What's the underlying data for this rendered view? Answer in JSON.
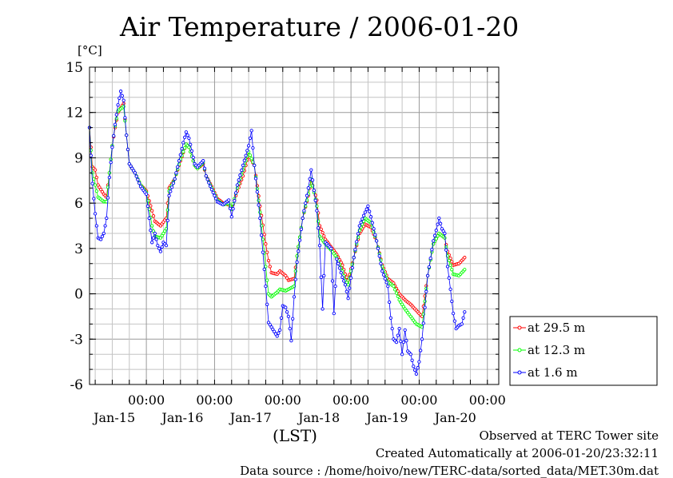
{
  "chart_data": {
    "type": "scatter",
    "title": "Air Temperature / 2006-01-20",
    "ylabel": "[°C]",
    "xlabel": "(LST)",
    "ylim": [
      -6,
      15
    ],
    "yticks": [
      -6,
      -3,
      0,
      3,
      6,
      9,
      12,
      15
    ],
    "x_unit": "hours",
    "xlim": [
      0,
      144
    ],
    "x_start": "2006-01-14 12:00",
    "day_ticks": [
      {
        "x": 20,
        "time": "00:00",
        "day": "Jan-15"
      },
      {
        "x": 44,
        "time": "00:00",
        "day": "Jan-16"
      },
      {
        "x": 68,
        "time": "00:00",
        "day": "Jan-17"
      },
      {
        "x": 92,
        "time": "00:00",
        "day": "Jan-18"
      },
      {
        "x": 116,
        "time": "00:00",
        "day": "Jan-19"
      },
      {
        "x": 140,
        "time": "00:00",
        "day": "Jan-20"
      }
    ],
    "grid": true,
    "legend_position": "right",
    "series": [
      {
        "name": "at 29.5 m",
        "color": "#ff0000",
        "points": [
          [
            0,
            11
          ],
          [
            1,
            8.4
          ],
          [
            2,
            8.2
          ],
          [
            3,
            7.2
          ],
          [
            5,
            6.6
          ],
          [
            6,
            6.4
          ],
          [
            7,
            8
          ],
          [
            8,
            9.8
          ],
          [
            9,
            11
          ],
          [
            10,
            12
          ],
          [
            12,
            12.6
          ],
          [
            13,
            10.5
          ],
          [
            14,
            8.6
          ],
          [
            16,
            8
          ],
          [
            18,
            7.2
          ],
          [
            20,
            6.8
          ],
          [
            22,
            5.5
          ],
          [
            23,
            4.8
          ],
          [
            25,
            4.5
          ],
          [
            27,
            5
          ],
          [
            28,
            7
          ],
          [
            30,
            7.6
          ],
          [
            32,
            8.8
          ],
          [
            34,
            9.9
          ],
          [
            35,
            9.7
          ],
          [
            37,
            8.5
          ],
          [
            38,
            8.3
          ],
          [
            40,
            8.6
          ],
          [
            41,
            7.8
          ],
          [
            43,
            7.1
          ],
          [
            45,
            6.3
          ],
          [
            47,
            6
          ],
          [
            49,
            5.9
          ],
          [
            50,
            5.6
          ],
          [
            52,
            6.8
          ],
          [
            54,
            7.8
          ],
          [
            56,
            9.2
          ],
          [
            58,
            8.5
          ],
          [
            60,
            5.8
          ],
          [
            62,
            3.3
          ],
          [
            63,
            2.2
          ],
          [
            64,
            1.4
          ],
          [
            66,
            1.3
          ],
          [
            67,
            1.5
          ],
          [
            69,
            1.2
          ],
          [
            70,
            0.9
          ],
          [
            72,
            1
          ],
          [
            73,
            2.5
          ],
          [
            75,
            5
          ],
          [
            77,
            6.5
          ],
          [
            78,
            7.5
          ],
          [
            80,
            6.2
          ],
          [
            81,
            4.5
          ],
          [
            83,
            3.6
          ],
          [
            85,
            3.1
          ],
          [
            87,
            2.6
          ],
          [
            89,
            1.9
          ],
          [
            90,
            1.3
          ],
          [
            91,
            0.9
          ],
          [
            93,
            2.4
          ],
          [
            95,
            4
          ],
          [
            97,
            4.6
          ],
          [
            99,
            4.4
          ],
          [
            101,
            3.5
          ],
          [
            103,
            1.9
          ],
          [
            105,
            1
          ],
          [
            107,
            0.7
          ],
          [
            109,
            0
          ],
          [
            111,
            -0.4
          ],
          [
            113,
            -0.7
          ],
          [
            115,
            -1.1
          ],
          [
            117,
            -1.5
          ],
          [
            119,
            1.2
          ],
          [
            121,
            3.3
          ],
          [
            123,
            4
          ],
          [
            125,
            3.7
          ],
          [
            126,
            2.8
          ],
          [
            128,
            1.9
          ],
          [
            130,
            2
          ],
          [
            132,
            2.4
          ]
        ]
      },
      {
        "name": "at 12.3 m",
        "color": "#00ff00",
        "points": [
          [
            0,
            11
          ],
          [
            1,
            8
          ],
          [
            2,
            7.2
          ],
          [
            3,
            6.4
          ],
          [
            5,
            6.1
          ],
          [
            6,
            6.1
          ],
          [
            7,
            8
          ],
          [
            8,
            9.8
          ],
          [
            9,
            11.1
          ],
          [
            10,
            12.1
          ],
          [
            12,
            12.4
          ],
          [
            13,
            10.5
          ],
          [
            14,
            8.6
          ],
          [
            16,
            8
          ],
          [
            18,
            7.2
          ],
          [
            20,
            6.7
          ],
          [
            22,
            4.5
          ],
          [
            23,
            3.8
          ],
          [
            25,
            3.7
          ],
          [
            27,
            4.3
          ],
          [
            28,
            6.8
          ],
          [
            30,
            7.6
          ],
          [
            32,
            8.9
          ],
          [
            34,
            9.9
          ],
          [
            35,
            9.7
          ],
          [
            37,
            8.5
          ],
          [
            38,
            8.3
          ],
          [
            40,
            8.7
          ],
          [
            41,
            7.8
          ],
          [
            43,
            7
          ],
          [
            45,
            6.2
          ],
          [
            47,
            5.9
          ],
          [
            49,
            6
          ],
          [
            50,
            5.6
          ],
          [
            52,
            7
          ],
          [
            54,
            8.2
          ],
          [
            56,
            9.4
          ],
          [
            58,
            8.5
          ],
          [
            60,
            5.4
          ],
          [
            62,
            1.8
          ],
          [
            63,
            0
          ],
          [
            64,
            -0.2
          ],
          [
            66,
            0.1
          ],
          [
            67,
            0.3
          ],
          [
            69,
            0.2
          ],
          [
            70,
            0.3
          ],
          [
            72,
            0.5
          ],
          [
            73,
            2.5
          ],
          [
            75,
            5
          ],
          [
            77,
            6.6
          ],
          [
            78,
            7.6
          ],
          [
            80,
            5.8
          ],
          [
            81,
            3.8
          ],
          [
            83,
            3.3
          ],
          [
            85,
            2.9
          ],
          [
            87,
            2.4
          ],
          [
            89,
            1.5
          ],
          [
            90,
            0.9
          ],
          [
            91,
            0.6
          ],
          [
            93,
            2.4
          ],
          [
            95,
            4.2
          ],
          [
            97,
            5
          ],
          [
            99,
            4.7
          ],
          [
            101,
            3.5
          ],
          [
            103,
            1.8
          ],
          [
            105,
            0.8
          ],
          [
            107,
            0.5
          ],
          [
            109,
            -0.4
          ],
          [
            111,
            -1
          ],
          [
            113,
            -1.5
          ],
          [
            115,
            -2
          ],
          [
            117,
            -2.2
          ],
          [
            119,
            1.2
          ],
          [
            121,
            3.3
          ],
          [
            123,
            4
          ],
          [
            125,
            3.7
          ],
          [
            126,
            2.5
          ],
          [
            128,
            1.3
          ],
          [
            130,
            1.2
          ],
          [
            132,
            1.6
          ]
        ]
      },
      {
        "name": "at 1.6 m",
        "color": "#0000ff",
        "points": [
          [
            0,
            11
          ],
          [
            1,
            7.3
          ],
          [
            2,
            5.3
          ],
          [
            3,
            3.7
          ],
          [
            4,
            3.6
          ],
          [
            5,
            4
          ],
          [
            6,
            5
          ],
          [
            7,
            7.7
          ],
          [
            8,
            9.7
          ],
          [
            9,
            11.2
          ],
          [
            10,
            12.5
          ],
          [
            11,
            13.4
          ],
          [
            12,
            12.8
          ],
          [
            13,
            10.5
          ],
          [
            14,
            8.6
          ],
          [
            16,
            8
          ],
          [
            18,
            7.1
          ],
          [
            20,
            6.6
          ],
          [
            22,
            3.4
          ],
          [
            23,
            4
          ],
          [
            24,
            3.2
          ],
          [
            25,
            2.8
          ],
          [
            26,
            3.4
          ],
          [
            27,
            3.2
          ],
          [
            28,
            6.5
          ],
          [
            30,
            7.6
          ],
          [
            32,
            9.2
          ],
          [
            33,
            10
          ],
          [
            34,
            10.7
          ],
          [
            35,
            10.3
          ],
          [
            37,
            8.6
          ],
          [
            38,
            8.4
          ],
          [
            40,
            8.8
          ],
          [
            41,
            7.8
          ],
          [
            43,
            6.9
          ],
          [
            45,
            6.1
          ],
          [
            47,
            5.9
          ],
          [
            49,
            6.2
          ],
          [
            50,
            5.1
          ],
          [
            52,
            7.2
          ],
          [
            54,
            8.5
          ],
          [
            56,
            9.8
          ],
          [
            57,
            10.8
          ],
          [
            58,
            8.5
          ],
          [
            60,
            5
          ],
          [
            62,
            0.5
          ],
          [
            63,
            -1.9
          ],
          [
            64,
            -2.2
          ],
          [
            66,
            -2.8
          ],
          [
            67,
            -2.4
          ],
          [
            68,
            -0.8
          ],
          [
            69,
            -0.9
          ],
          [
            70,
            -1.5
          ],
          [
            71,
            -3.1
          ],
          [
            72,
            -0.2
          ],
          [
            73,
            2.1
          ],
          [
            75,
            5
          ],
          [
            77,
            7
          ],
          [
            78,
            8.2
          ],
          [
            80,
            5.5
          ],
          [
            81,
            3.2
          ],
          [
            82,
            -1
          ],
          [
            83,
            3.4
          ],
          [
            85,
            3
          ],
          [
            86,
            -1.3
          ],
          [
            87,
            2.3
          ],
          [
            89,
            1.1
          ],
          [
            90,
            0.6
          ],
          [
            91,
            -0.3
          ],
          [
            93,
            2.4
          ],
          [
            95,
            4.5
          ],
          [
            97,
            5.4
          ],
          [
            98,
            5.8
          ],
          [
            99,
            5.1
          ],
          [
            101,
            3.5
          ],
          [
            103,
            1.5
          ],
          [
            105,
            0.5
          ],
          [
            106,
            -1.6
          ],
          [
            107,
            -3
          ],
          [
            108,
            -3.2
          ],
          [
            109,
            -2.3
          ],
          [
            110,
            -4
          ],
          [
            111,
            -2.4
          ],
          [
            112,
            -3.8
          ],
          [
            113,
            -4
          ],
          [
            114,
            -4.8
          ],
          [
            115,
            -5.3
          ],
          [
            116,
            -4.5
          ],
          [
            117,
            -3
          ],
          [
            119,
            1.2
          ],
          [
            121,
            3.5
          ],
          [
            122,
            4.2
          ],
          [
            123,
            5
          ],
          [
            124,
            4.3
          ],
          [
            125,
            4
          ],
          [
            126,
            1.8
          ],
          [
            127,
            0.3
          ],
          [
            128,
            -1.3
          ],
          [
            129,
            -2.3
          ],
          [
            130,
            -2.1
          ],
          [
            131,
            -2
          ],
          [
            132,
            -1.2
          ]
        ]
      }
    ]
  },
  "footer": {
    "observed": "Observed at TERC Tower site",
    "created": "Created Automatically at 2006-01-20/23:32:11",
    "source": "Data source : /home/hoivo/new/TERC-data/sorted_data/MET.30m.dat"
  }
}
